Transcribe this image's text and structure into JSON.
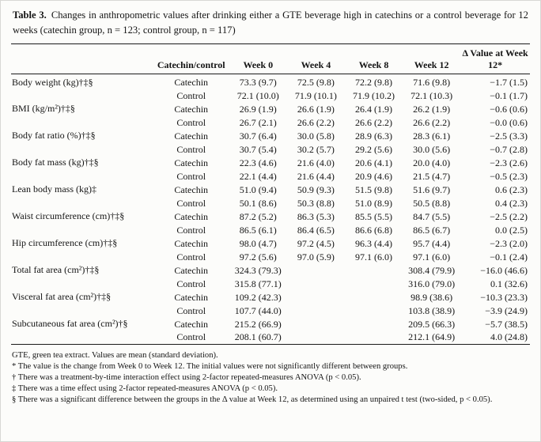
{
  "table": {
    "label": "Table 3.",
    "caption": "Changes in anthropometric values after drinking either a GTE beverage high in catechins or a control beverage for 12 weeks (catechin group, n = 123; control group, n = 117)",
    "headers": {
      "measure": "",
      "group": "Catechin/control",
      "week0": "Week 0",
      "week4": "Week 4",
      "week8": "Week 8",
      "week12": "Week 12",
      "delta": "Δ Value at Week 12*"
    },
    "rows": [
      {
        "label": "Body weight (kg)†‡§",
        "g1": {
          "group": "Catechin",
          "w0": "73.3 (9.7)",
          "w4": "72.5 (9.8)",
          "w8": "72.2 (9.8)",
          "w12": "71.6 (9.8)",
          "d": "−1.7 (1.5)"
        },
        "g2": {
          "group": "Control",
          "w0": "72.1 (10.0)",
          "w4": "71.9 (10.1)",
          "w8": "71.9 (10.2)",
          "w12": "72.1 (10.3)",
          "d": "−0.1 (1.7)"
        }
      },
      {
        "label": "BMI (kg/m²)†‡§",
        "g1": {
          "group": "Catechin",
          "w0": "26.9 (1.9)",
          "w4": "26.6 (1.9)",
          "w8": "26.4 (1.9)",
          "w12": "26.2 (1.9)",
          "d": "−0.6 (0.6)"
        },
        "g2": {
          "group": "Control",
          "w0": "26.7 (2.1)",
          "w4": "26.6 (2.2)",
          "w8": "26.6 (2.2)",
          "w12": "26.6 (2.2)",
          "d": "−0.0 (0.6)"
        }
      },
      {
        "label": "Body fat ratio (%)†‡§",
        "g1": {
          "group": "Catechin",
          "w0": "30.7 (6.4)",
          "w4": "30.0 (5.8)",
          "w8": "28.9 (6.3)",
          "w12": "28.3 (6.1)",
          "d": "−2.5 (3.3)"
        },
        "g2": {
          "group": "Control",
          "w0": "30.7 (5.4)",
          "w4": "30.2 (5.7)",
          "w8": "29.2 (5.6)",
          "w12": "30.0 (5.6)",
          "d": "−0.7 (2.8)"
        }
      },
      {
        "label": "Body fat mass (kg)†‡§",
        "g1": {
          "group": "Catechin",
          "w0": "22.3 (4.6)",
          "w4": "21.6 (4.0)",
          "w8": "20.6 (4.1)",
          "w12": "20.0 (4.0)",
          "d": "−2.3 (2.6)"
        },
        "g2": {
          "group": "Control",
          "w0": "22.1 (4.4)",
          "w4": "21.6 (4.4)",
          "w8": "20.9 (4.6)",
          "w12": "21.5 (4.7)",
          "d": "−0.5 (2.3)"
        }
      },
      {
        "label": "Lean body mass (kg)‡",
        "g1": {
          "group": "Catechin",
          "w0": "51.0 (9.4)",
          "w4": "50.9 (9.3)",
          "w8": "51.5 (9.8)",
          "w12": "51.6 (9.7)",
          "d": "0.6 (2.3)"
        },
        "g2": {
          "group": "Control",
          "w0": "50.1 (8.6)",
          "w4": "50.3 (8.8)",
          "w8": "51.0 (8.9)",
          "w12": "50.5 (8.8)",
          "d": "0.4 (2.3)"
        }
      },
      {
        "label": "Waist circumference (cm)†‡§",
        "g1": {
          "group": "Catechin",
          "w0": "87.2 (5.2)",
          "w4": "86.3 (5.3)",
          "w8": "85.5 (5.5)",
          "w12": "84.7 (5.5)",
          "d": "−2.5 (2.2)"
        },
        "g2": {
          "group": "Control",
          "w0": "86.5 (6.1)",
          "w4": "86.4 (6.5)",
          "w8": "86.6 (6.8)",
          "w12": "86.5 (6.7)",
          "d": "0.0 (2.5)"
        }
      },
      {
        "label": "Hip circumference (cm)†‡§",
        "g1": {
          "group": "Catechin",
          "w0": "98.0 (4.7)",
          "w4": "97.2 (4.5)",
          "w8": "96.3 (4.4)",
          "w12": "95.7 (4.4)",
          "d": "−2.3 (2.0)"
        },
        "g2": {
          "group": "Control",
          "w0": "97.2 (5.6)",
          "w4": "97.0 (5.9)",
          "w8": "97.1 (6.0)",
          "w12": "97.1 (6.0)",
          "d": "−0.1 (2.4)"
        }
      },
      {
        "label": "Total fat area (cm²)†‡§",
        "g1": {
          "group": "Catechin",
          "w0": "324.3 (79.3)",
          "w4": "",
          "w8": "",
          "w12": "308.4 (79.9)",
          "d": "−16.0 (46.6)"
        },
        "g2": {
          "group": "Control",
          "w0": "315.8 (77.1)",
          "w4": "",
          "w8": "",
          "w12": "316.0 (79.0)",
          "d": "0.1 (32.6)"
        }
      },
      {
        "label": "Visceral fat area (cm²)†‡§",
        "g1": {
          "group": "Catechin",
          "w0": "109.2 (42.3)",
          "w4": "",
          "w8": "",
          "w12": "98.9 (38.6)",
          "d": "−10.3 (23.3)"
        },
        "g2": {
          "group": "Control",
          "w0": "107.7 (44.0)",
          "w4": "",
          "w8": "",
          "w12": "103.8 (38.9)",
          "d": "−3.9 (24.9)"
        }
      },
      {
        "label": "Subcutaneous fat area (cm²)†§",
        "g1": {
          "group": "Catechin",
          "w0": "215.2 (66.9)",
          "w4": "",
          "w8": "",
          "w12": "209.5 (66.3)",
          "d": "−5.7 (38.5)"
        },
        "g2": {
          "group": "Control",
          "w0": "208.1 (60.7)",
          "w4": "",
          "w8": "",
          "w12": "212.1 (64.9)",
          "d": "4.0 (24.8)"
        }
      }
    ]
  },
  "footnotes": [
    "GTE, green tea extract. Values are mean (standard deviation).",
    "* The value is the change from Week 0 to Week 12. The initial values were not significantly different between groups.",
    "† There was a treatment-by-time interaction effect using 2-factor repeated-measures ANOVA (p < 0.05).",
    "‡ There was a time effect using 2-factor repeated-measures ANOVA (p < 0.05).",
    "§ There was a significant difference between the groups in the Δ value at Week 12, as determined using an unpaired t test (two-sided, p < 0.05)."
  ]
}
